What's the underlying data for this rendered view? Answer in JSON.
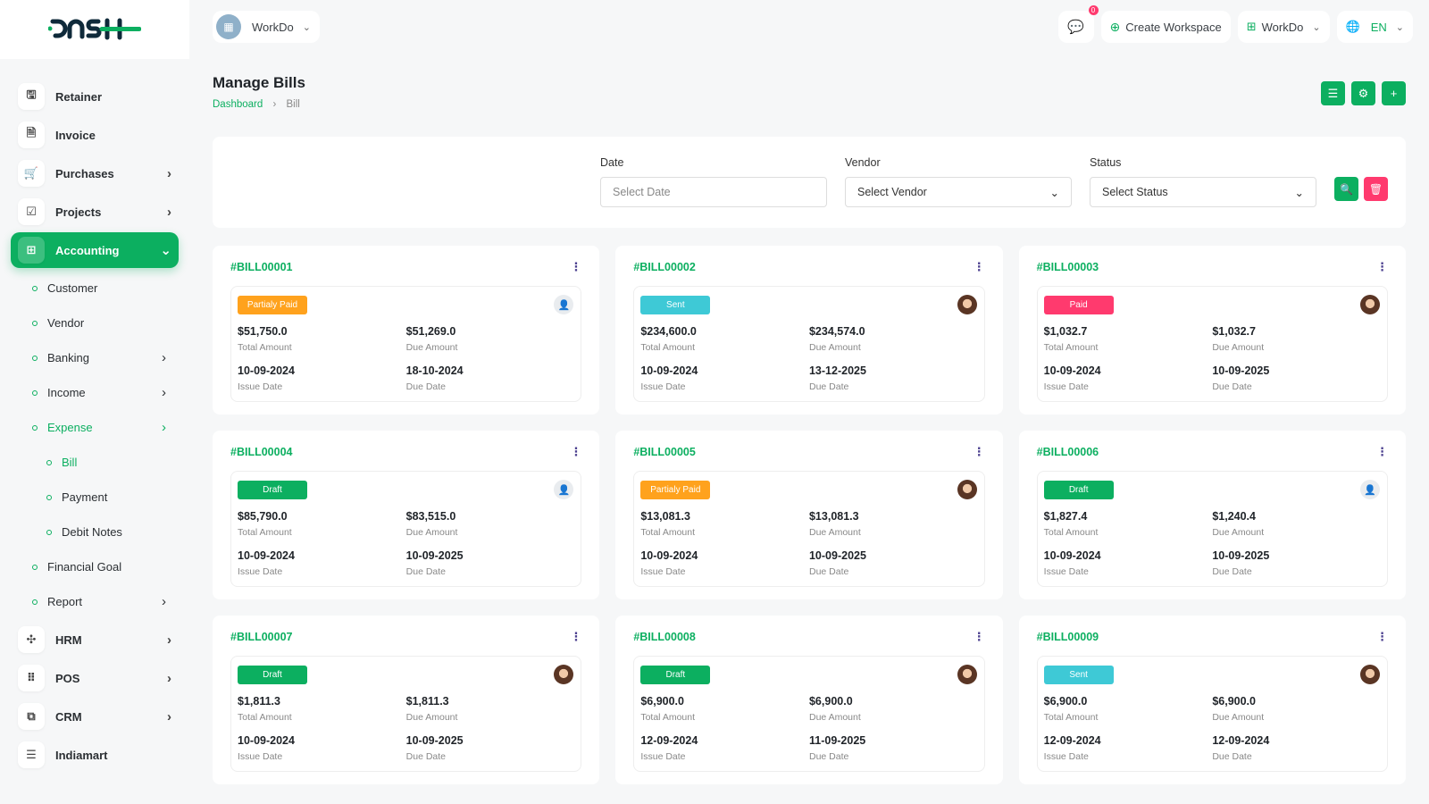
{
  "brand": {
    "logo_text": "DASH",
    "accent": "#0caf60"
  },
  "sidebar": {
    "items": [
      {
        "label": "Retainer",
        "icon": "file-save-icon"
      },
      {
        "label": "Invoice",
        "icon": "file-icon"
      },
      {
        "label": "Purchases",
        "icon": "cart-icon",
        "chevron": true
      },
      {
        "label": "Projects",
        "icon": "checkbox-icon",
        "chevron": true
      },
      {
        "label": "Accounting",
        "icon": "grid-icon",
        "chevron": true,
        "active": true
      }
    ],
    "accounting_sub": [
      {
        "label": "Customer"
      },
      {
        "label": "Vendor"
      },
      {
        "label": "Banking",
        "chevron": true
      },
      {
        "label": "Income",
        "chevron": true
      },
      {
        "label": "Expense",
        "chevron": true,
        "active": true
      }
    ],
    "expense_sub": [
      {
        "label": "Bill",
        "active": true
      },
      {
        "label": "Payment"
      },
      {
        "label": "Debit Notes"
      }
    ],
    "accounting_sub2": [
      {
        "label": "Financial Goal"
      },
      {
        "label": "Report",
        "chevron": true
      }
    ],
    "bottom_items": [
      {
        "label": "HRM",
        "icon": "hrm-icon",
        "chevron": true
      },
      {
        "label": "POS",
        "icon": "pos-icon",
        "chevron": true
      },
      {
        "label": "CRM",
        "icon": "crm-icon",
        "chevron": true
      },
      {
        "label": "Indiamart",
        "icon": "indiamart-icon"
      }
    ]
  },
  "topbar": {
    "workspace": "WorkDo",
    "messages_count": "0",
    "create_workspace": "Create Workspace",
    "workspace_menu": "WorkDo",
    "language": "EN"
  },
  "page": {
    "title": "Manage Bills",
    "breadcrumb": [
      "Dashboard",
      "Bill"
    ]
  },
  "filters": {
    "date_label": "Date",
    "date_placeholder": "Select Date",
    "vendor_label": "Vendor",
    "vendor_value": "Select Vendor",
    "status_label": "Status",
    "status_value": "Select Status"
  },
  "labels": {
    "total": "Total Amount",
    "due": "Due Amount",
    "issue": "Issue Date",
    "due_date": "Due Date"
  },
  "status_colors": {
    "Partialy Paid": "#ffa21d",
    "Sent": "#3ec9d6",
    "Paid": "#ff3a6e",
    "Draft": "#0caf60"
  },
  "bills": [
    {
      "id": "#BILL00001",
      "status": "Partialy Paid",
      "total": "$51,750.0",
      "due": "$51,269.0",
      "issue_date": "10-09-2024",
      "due_date": "18-10-2024",
      "avatar": "placeholder"
    },
    {
      "id": "#BILL00002",
      "status": "Sent",
      "total": "$234,600.0",
      "due": "$234,574.0",
      "issue_date": "10-09-2024",
      "due_date": "13-12-2025",
      "avatar": "photo"
    },
    {
      "id": "#BILL00003",
      "status": "Paid",
      "total": "$1,032.7",
      "due": "$1,032.7",
      "issue_date": "10-09-2024",
      "due_date": "10-09-2025",
      "avatar": "photo"
    },
    {
      "id": "#BILL00004",
      "status": "Draft",
      "total": "$85,790.0",
      "due": "$83,515.0",
      "issue_date": "10-09-2024",
      "due_date": "10-09-2025",
      "avatar": "placeholder"
    },
    {
      "id": "#BILL00005",
      "status": "Partialy Paid",
      "total": "$13,081.3",
      "due": "$13,081.3",
      "issue_date": "10-09-2024",
      "due_date": "10-09-2025",
      "avatar": "photo"
    },
    {
      "id": "#BILL00006",
      "status": "Draft",
      "total": "$1,827.4",
      "due": "$1,240.4",
      "issue_date": "10-09-2024",
      "due_date": "10-09-2025",
      "avatar": "placeholder"
    },
    {
      "id": "#BILL00007",
      "status": "Draft",
      "total": "$1,811.3",
      "due": "$1,811.3",
      "issue_date": "10-09-2024",
      "due_date": "10-09-2025",
      "avatar": "photo"
    },
    {
      "id": "#BILL00008",
      "status": "Draft",
      "total": "$6,900.0",
      "due": "$6,900.0",
      "issue_date": "12-09-2024",
      "due_date": "11-09-2025",
      "avatar": "photo"
    },
    {
      "id": "#BILL00009",
      "status": "Sent",
      "total": "$6,900.0",
      "due": "$6,900.0",
      "issue_date": "12-09-2024",
      "due_date": "12-09-2024",
      "avatar": "photo"
    }
  ]
}
